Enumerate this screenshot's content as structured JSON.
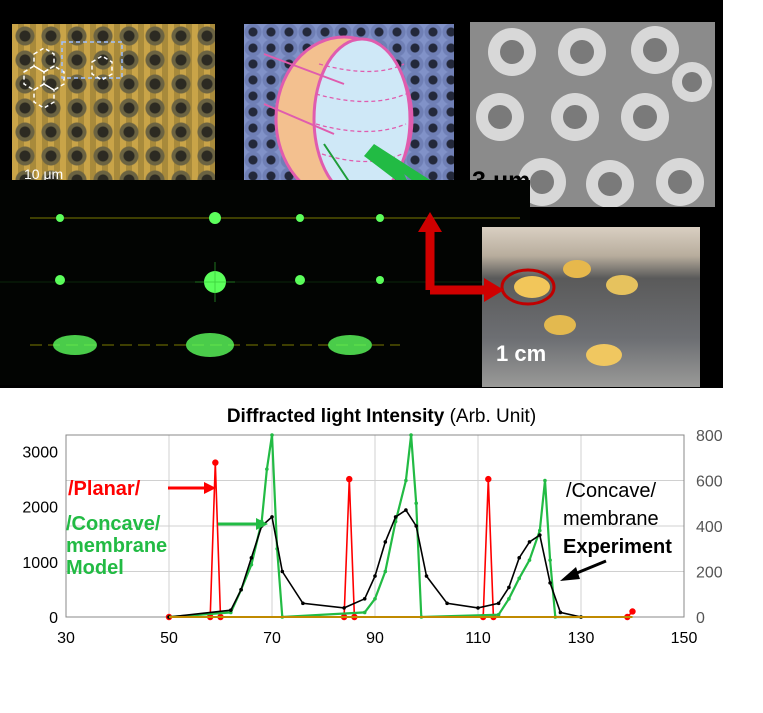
{
  "figure": {
    "scale_micro": "10 μm",
    "scale_sem": "3 μm",
    "scale_photo": "1 cm"
  },
  "chart_data": {
    "type": "line",
    "title_bold": "Diffracted light Intensity",
    "title_rest": "(Arb. Unit)",
    "x_ticks": [
      "30",
      "50",
      "70",
      "90",
      "110",
      "130",
      "150"
    ],
    "y_left_ticks": [
      "0",
      "1000",
      "2000",
      "3000"
    ],
    "y_right_ticks": [
      "0",
      "200",
      "400",
      "600",
      "800"
    ],
    "xlim": [
      30,
      150
    ],
    "ylim_left": [
      0,
      3300
    ],
    "ylim_right": [
      0,
      800
    ],
    "grid": true,
    "series": [
      {
        "name": "/Planar/",
        "color": "#ff0000",
        "axis": "left",
        "x": [
          50,
          58,
          59,
          60,
          84,
          85,
          86,
          111,
          112,
          113,
          139,
          140
        ],
        "y": [
          0,
          0,
          2800,
          0,
          0,
          2500,
          0,
          0,
          2500,
          0,
          0,
          100
        ]
      },
      {
        "name": "/Concave/ membrane Model",
        "color": "#22bb44",
        "axis": "right",
        "x": [
          50,
          62,
          64,
          66,
          68,
          69,
          70,
          71,
          72,
          88,
          90,
          92,
          94,
          96,
          97,
          98,
          99,
          114,
          116,
          118,
          120,
          122,
          123,
          124,
          125,
          130
        ],
        "y": [
          0,
          20,
          120,
          230,
          420,
          650,
          800,
          300,
          0,
          20,
          80,
          200,
          420,
          600,
          800,
          500,
          0,
          10,
          80,
          170,
          250,
          380,
          600,
          250,
          0,
          0
        ]
      },
      {
        "name": "/Concave/ membrane Experiment",
        "color": "#000000",
        "axis": "right",
        "x": [
          50,
          62,
          64,
          66,
          68,
          70,
          72,
          76,
          84,
          88,
          90,
          92,
          94,
          96,
          98,
          100,
          104,
          110,
          114,
          116,
          118,
          120,
          122,
          124,
          126,
          130
        ],
        "y": [
          0,
          30,
          120,
          260,
          400,
          440,
          200,
          60,
          40,
          80,
          180,
          330,
          440,
          470,
          400,
          180,
          60,
          40,
          60,
          130,
          260,
          330,
          360,
          150,
          20,
          0
        ]
      }
    ],
    "legend": {
      "planar": "/Planar/",
      "concave_a": "/Concave/",
      "concave_b": "membrane",
      "concave_c": "Model",
      "exp_a": "/Concave/",
      "exp_b": "membrane",
      "exp_c": "Experiment"
    }
  }
}
